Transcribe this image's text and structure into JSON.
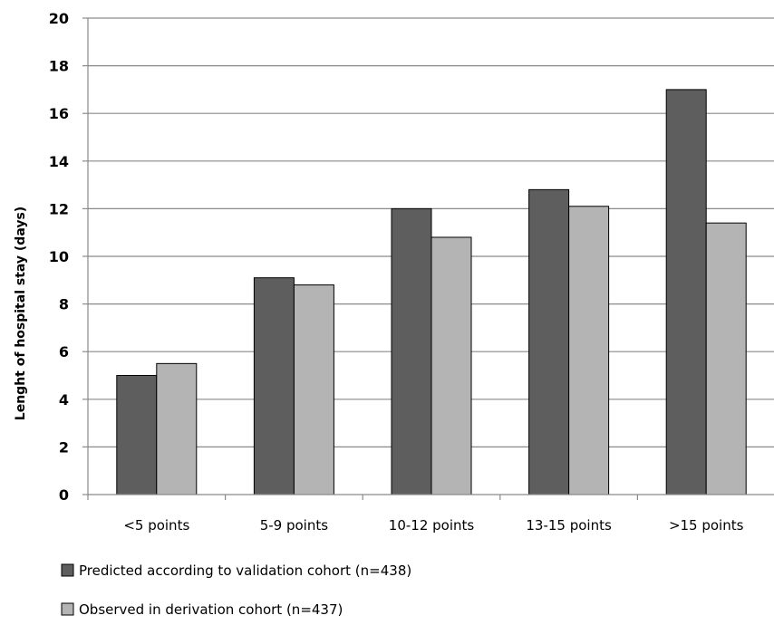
{
  "chart_data": {
    "type": "bar",
    "title": "",
    "xlabel": "",
    "ylabel": "Lenght of hospital stay (days)",
    "ylim": [
      0,
      20
    ],
    "yticks": [
      0,
      2,
      4,
      6,
      8,
      10,
      12,
      14,
      16,
      18,
      20
    ],
    "grid": true,
    "legend_position": "bottom-left",
    "categories": [
      "<5 points",
      "5-9 points",
      "10-12 points",
      "13-15 points",
      ">15 points"
    ],
    "series": [
      {
        "name": "Predicted according to validation cohort (n=438)",
        "color": "#5e5e5e",
        "values": [
          5.0,
          9.1,
          12.0,
          12.8,
          17.0
        ]
      },
      {
        "name": "Observed in derivation cohort (n=437)",
        "color": "#b4b4b4",
        "values": [
          5.5,
          8.8,
          10.8,
          12.1,
          11.4
        ]
      }
    ]
  }
}
